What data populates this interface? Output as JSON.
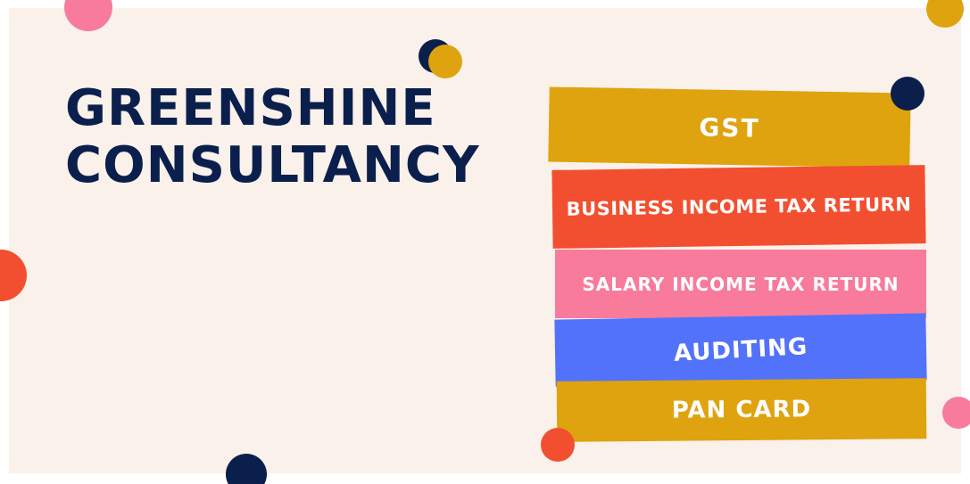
{
  "brand": {
    "line1": "GREENSHINE",
    "line2": "CONSULTANCY"
  },
  "services": [
    {
      "label": "GST"
    },
    {
      "label": "BUSINESS INCOME TAX RETURN"
    },
    {
      "label": "SALARY INCOME TAX RETURN"
    },
    {
      "label": "AUDITING"
    },
    {
      "label": "PAN CARD"
    }
  ],
  "colors": {
    "background": "#f9f1ea",
    "navy": "#0b1f4d",
    "mustard": "#dea30f",
    "orange_red": "#f24f30",
    "pink": "#f87b9c",
    "blue": "#5272fa"
  }
}
